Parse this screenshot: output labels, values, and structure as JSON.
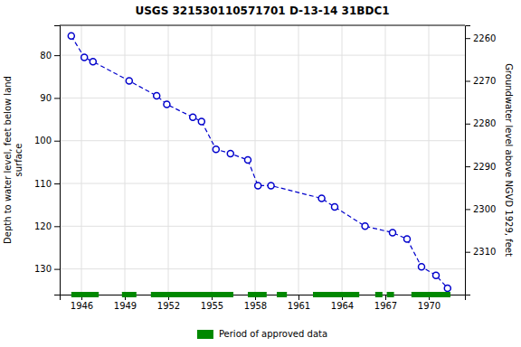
{
  "chart_data": {
    "type": "line",
    "title": "USGS 321530110571701 D-13-14 31BDC1",
    "y_label": "Depth to water level, feet below land\nsurface",
    "y2_label": "Groundwater level above NGVD 1929, feet",
    "x": [
      1945.3,
      1946.2,
      1946.8,
      1949.3,
      1951.2,
      1951.9,
      1953.7,
      1954.3,
      1955.3,
      1956.3,
      1957.5,
      1958.2,
      1959.1,
      1962.6,
      1963.5,
      1965.6,
      1967.5,
      1968.5,
      1969.5,
      1970.5,
      1971.3
    ],
    "series": [
      {
        "values": [
          75.5,
          80.5,
          81.5,
          86.0,
          89.5,
          91.5,
          94.5,
          95.5,
          102.0,
          103.0,
          104.5,
          110.5,
          110.5,
          113.5,
          115.5,
          120.0,
          121.5,
          123.0,
          129.5,
          131.5,
          134.5
        ],
        "color": "#0000cc",
        "line_style": "dashed",
        "marker": "circle"
      }
    ],
    "xlim": [
      1944.5,
      1972.5
    ],
    "xticks": [
      1946,
      1949,
      1952,
      1955,
      1958,
      1961,
      1964,
      1967,
      1970
    ],
    "ylim": [
      136,
      73
    ],
    "yticks": [
      80,
      90,
      100,
      110,
      120,
      130
    ],
    "y2lim": [
      2320,
      2257
    ],
    "y2ticks": [
      2310,
      2300,
      2290,
      2280,
      2270,
      2260
    ],
    "grid": true,
    "legend": "bottom",
    "bands": {
      "name": "Period of approved data",
      "color": "#008800",
      "ranges": [
        [
          1945.3,
          1947.2
        ],
        [
          1948.8,
          1949.8
        ],
        [
          1950.8,
          1956.5
        ],
        [
          1957.5,
          1958.8
        ],
        [
          1959.5,
          1960.2
        ],
        [
          1962.0,
          1965.2
        ],
        [
          1966.3,
          1966.8
        ],
        [
          1967.1,
          1967.6
        ],
        [
          1968.8,
          1971.5
        ]
      ]
    }
  }
}
